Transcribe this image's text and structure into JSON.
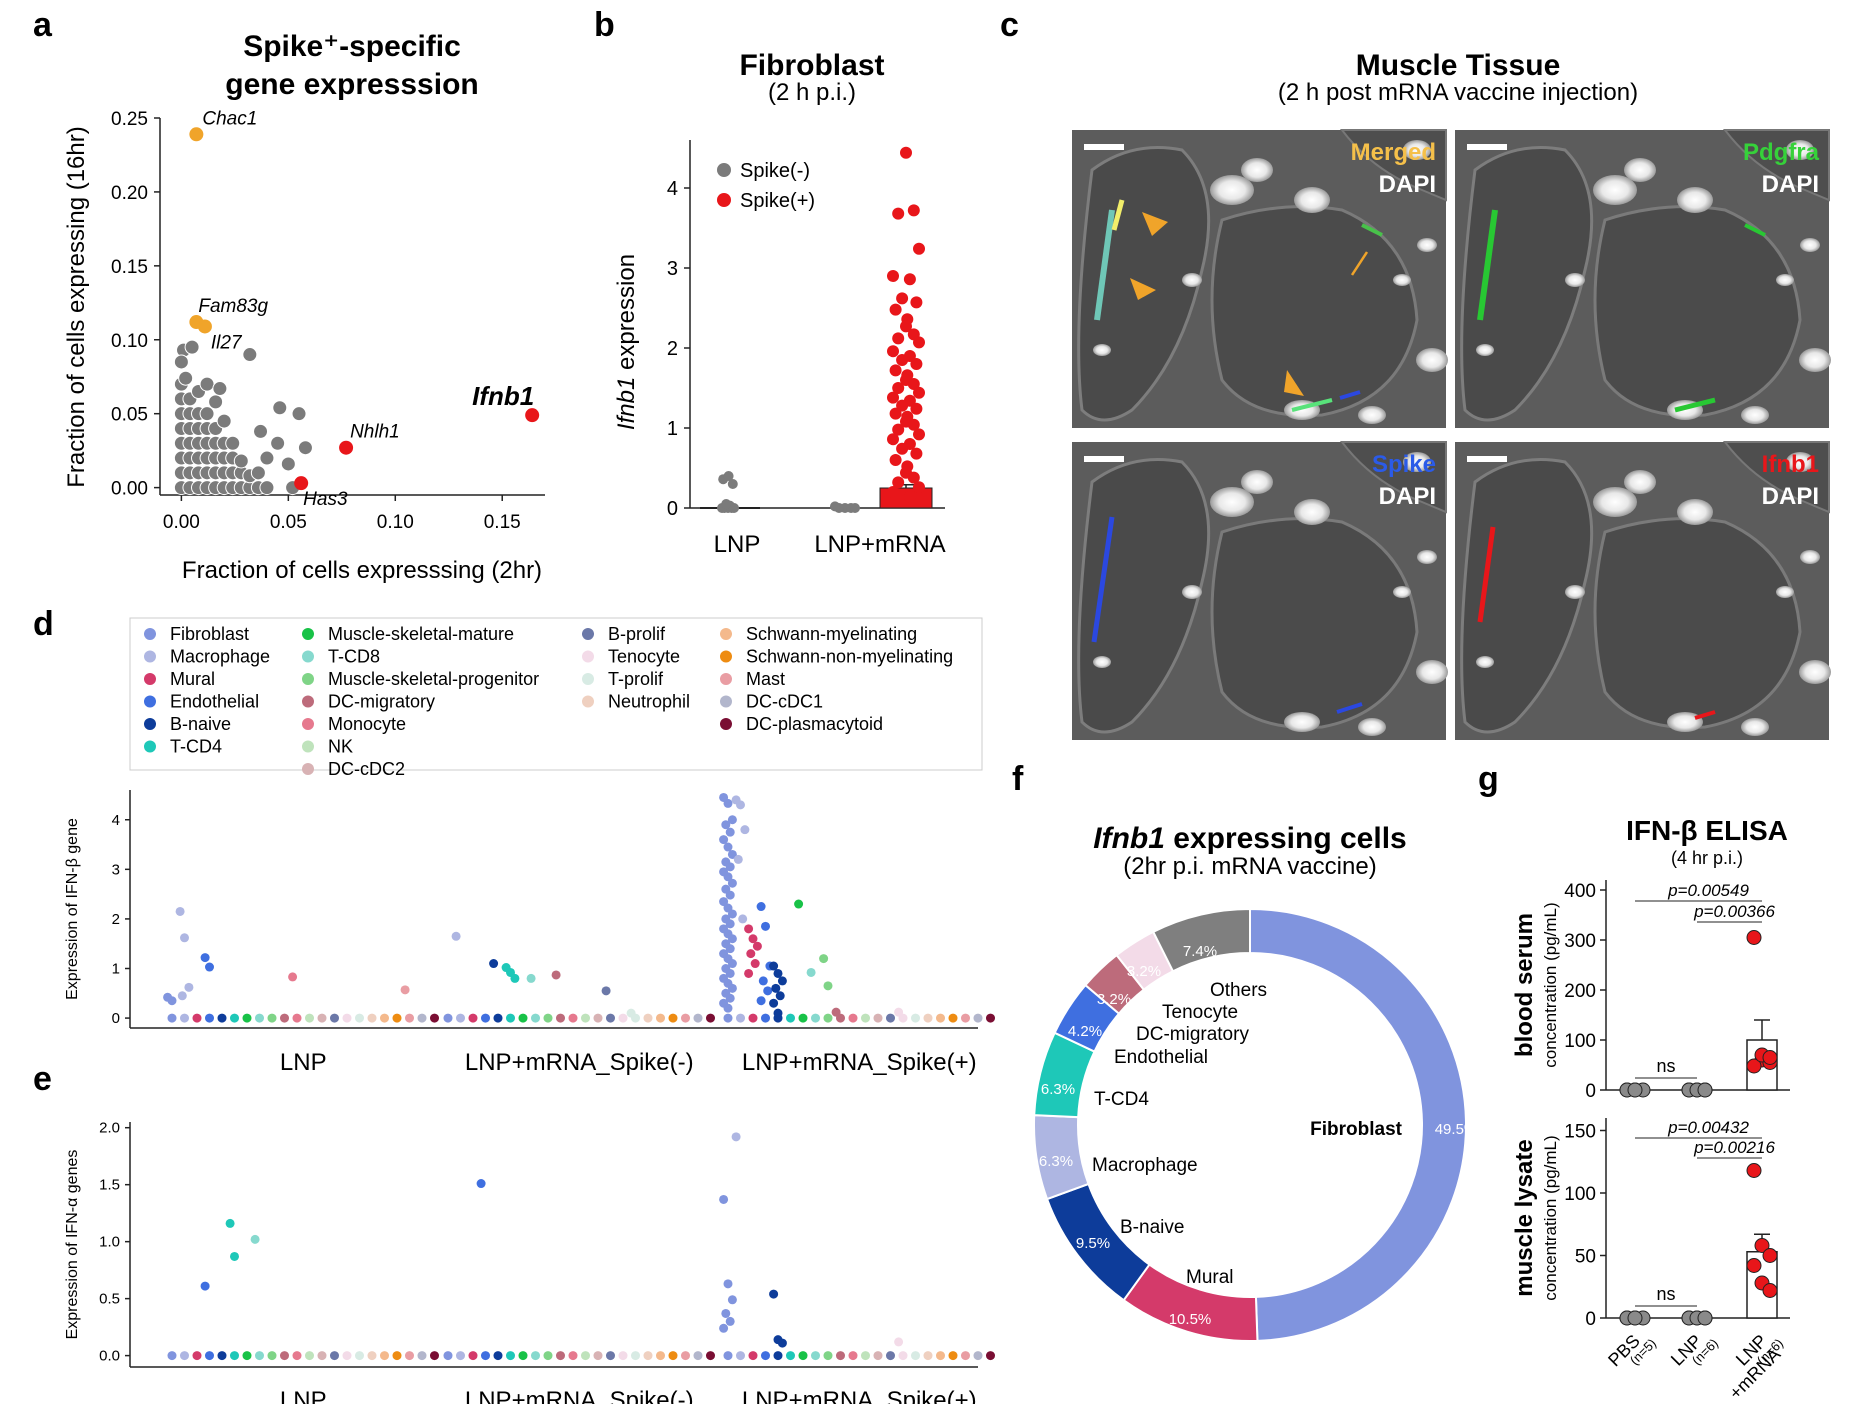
{
  "panels": {
    "a": "a",
    "b": "b",
    "c": "c",
    "d": "d",
    "e": "e",
    "f": "f",
    "g": "g"
  },
  "colors": {
    "gray": "#7b7b7b",
    "orange": "#f0a42a",
    "red": "#e8161a",
    "celltypes": {
      "Fibroblast": "#8094de",
      "Macrophage": "#aeb6e2",
      "Mural": "#d43a6a",
      "Endothelial": "#3f6fe0",
      "B-naive": "#0d3c9a",
      "T-CD4": "#1ec8b8",
      "Muscle-skeletal-mature": "#18c247",
      "T-CD8": "#86d9ce",
      "Muscle-skeletal-progenitor": "#7fd487",
      "DC-migratory": "#bd6b7b",
      "Monocyte": "#e6798e",
      "NK": "#bfe3bc",
      "DC-cDC2": "#d8b2b4",
      "B-prolif": "#6b78a8",
      "Tenocyte": "#f3dbe8",
      "T-prolif": "#d8ebe4",
      "Neutrophil": "#efd0c0",
      "Schwann-myelinating": "#f4b98c",
      "Schwann-non-myelinating": "#ee8c12",
      "Mast": "#e99da3",
      "DC-cDC1": "#b2b6cc",
      "DC-plasmacytoid": "#7a0e33",
      "Others": "#7f7f7f"
    }
  },
  "chart_data": [
    {
      "id": "a",
      "type": "scatter",
      "title": "Spike⁺-specific",
      "title2": "gene expresssion",
      "xlabel": "Fraction of cells expresssing (2hr)",
      "ylabel": "Fraction of cells expressing (16hr)",
      "xlim": [
        -0.01,
        0.17
      ],
      "ylim": [
        -0.005,
        0.25
      ],
      "xticks": [
        "0.00",
        "0.05",
        "0.10",
        "0.15"
      ],
      "xtick_values": [
        0,
        0.05,
        0.1,
        0.15
      ],
      "yticks": [
        "0.00",
        "0.05",
        "0.10",
        "0.15",
        "0.20",
        "0.25"
      ],
      "ytick_values": [
        0,
        0.05,
        0.1,
        0.15,
        0.2,
        0.25
      ],
      "grid": false,
      "highlighted": [
        {
          "name": "Chac1",
          "x": 0.007,
          "y": 0.239,
          "color": "orange",
          "italic": true,
          "bold": false
        },
        {
          "name": "Fam83g",
          "x": 0.007,
          "y": 0.112,
          "color": "orange",
          "italic": true,
          "bold": false
        },
        {
          "name": "Il27",
          "x": 0.011,
          "y": 0.109,
          "color": "orange",
          "italic": true,
          "bold": false
        },
        {
          "name": "Ifnb1",
          "x": 0.164,
          "y": 0.049,
          "color": "red",
          "italic": true,
          "bold": true
        },
        {
          "name": "Nhlh1",
          "x": 0.077,
          "y": 0.027,
          "color": "red",
          "italic": true,
          "bold": false
        },
        {
          "name": "Has3",
          "x": 0.056,
          "y": 0.003,
          "color": "red",
          "italic": true,
          "bold": false
        }
      ],
      "background_points_approx": [
        [
          0.0,
          0.0
        ],
        [
          0.0,
          0.01
        ],
        [
          0.0,
          0.02
        ],
        [
          0.0,
          0.03
        ],
        [
          0.0,
          0.04
        ],
        [
          0.0,
          0.05
        ],
        [
          0.0,
          0.06
        ],
        [
          0.0,
          0.07
        ],
        [
          0.002,
          0.074
        ],
        [
          0.001,
          0.093
        ],
        [
          0.005,
          0.095
        ],
        [
          0.0,
          0.085
        ],
        [
          0.004,
          0.0
        ],
        [
          0.004,
          0.01
        ],
        [
          0.004,
          0.02
        ],
        [
          0.004,
          0.03
        ],
        [
          0.004,
          0.04
        ],
        [
          0.004,
          0.05
        ],
        [
          0.004,
          0.06
        ],
        [
          0.008,
          0.0
        ],
        [
          0.008,
          0.01
        ],
        [
          0.008,
          0.02
        ],
        [
          0.008,
          0.03
        ],
        [
          0.008,
          0.04
        ],
        [
          0.008,
          0.05
        ],
        [
          0.008,
          0.065
        ],
        [
          0.012,
          0.0
        ],
        [
          0.012,
          0.01
        ],
        [
          0.012,
          0.02
        ],
        [
          0.012,
          0.03
        ],
        [
          0.012,
          0.04
        ],
        [
          0.012,
          0.05
        ],
        [
          0.012,
          0.07
        ],
        [
          0.016,
          0.0
        ],
        [
          0.016,
          0.01
        ],
        [
          0.016,
          0.02
        ],
        [
          0.016,
          0.03
        ],
        [
          0.016,
          0.04
        ],
        [
          0.016,
          0.058
        ],
        [
          0.02,
          0.0
        ],
        [
          0.02,
          0.01
        ],
        [
          0.02,
          0.02
        ],
        [
          0.02,
          0.03
        ],
        [
          0.02,
          0.045
        ],
        [
          0.024,
          0.0
        ],
        [
          0.024,
          0.01
        ],
        [
          0.024,
          0.02
        ],
        [
          0.024,
          0.03
        ],
        [
          0.028,
          0.0
        ],
        [
          0.028,
          0.01
        ],
        [
          0.028,
          0.018
        ],
        [
          0.032,
          0.0
        ],
        [
          0.032,
          0.008
        ],
        [
          0.032,
          0.09
        ],
        [
          0.036,
          0.0
        ],
        [
          0.036,
          0.01
        ],
        [
          0.04,
          0.0
        ],
        [
          0.04,
          0.02
        ],
        [
          0.037,
          0.038
        ],
        [
          0.046,
          0.054
        ],
        [
          0.05,
          0.016
        ],
        [
          0.052,
          0.0
        ],
        [
          0.055,
          0.05
        ],
        [
          0.058,
          0.027
        ],
        [
          0.018,
          0.067
        ],
        [
          0.045,
          0.03
        ]
      ]
    },
    {
      "id": "b",
      "type": "strip+bar",
      "title": "Fibroblast",
      "subtitle": "(2 h p.i.)",
      "ylabel": "Ifnb1 expression",
      "ylabel_italic": "Ifnb1",
      "ylabel_rest": " expression",
      "categories": [
        "LNP",
        "LNP+mRNA"
      ],
      "ylim": [
        0,
        4.6
      ],
      "yticks": [
        "0",
        "1",
        "2",
        "3",
        "4"
      ],
      "ytick_values": [
        0,
        1,
        2,
        3,
        4
      ],
      "legend": [
        {
          "name": "Spike(-)",
          "color": "gray"
        },
        {
          "name": "Spike(+)",
          "color": "red"
        }
      ],
      "spike_neg": {
        "LNP": [
          0.0,
          0.0,
          0.0,
          0.0,
          0.0,
          0.03,
          0.05,
          0.3,
          0.36,
          0.4
        ],
        "LNP+mRNA": [
          0.0,
          0.0,
          0.0,
          0.0,
          0.02
        ]
      },
      "spike_pos": {
        "LNP+mRNA": [
          4.44,
          3.72,
          3.68,
          3.24,
          2.9,
          2.86,
          2.62,
          2.57,
          2.48,
          2.36,
          2.27,
          2.17,
          2.12,
          2.07,
          1.96,
          1.9,
          1.85,
          1.8,
          1.72,
          1.66,
          1.6,
          1.55,
          1.5,
          1.44,
          1.38,
          1.34,
          1.28,
          1.24,
          1.18,
          1.14,
          1.08,
          1.04,
          0.98,
          0.92,
          0.86,
          0.8,
          0.74,
          0.68,
          0.6,
          0.52,
          0.44,
          0.38,
          0.32,
          0.26,
          0.2,
          0.14
        ]
      },
      "bar_mean": {
        "LNP+mRNA": 0.25
      },
      "bar_err": {
        "LNP+mRNA": 0.04
      }
    },
    {
      "id": "d",
      "type": "strip",
      "ylabel": "Expression of IFN-β gene",
      "groups": [
        "LNP",
        "LNP+mRNA_Spike(-)",
        "LNP+mRNA_Spike(+)"
      ],
      "ylim": [
        -0.2,
        4.6
      ],
      "yticks": [
        "0",
        "1",
        "2",
        "3",
        "4"
      ],
      "ytick_values": [
        0,
        1,
        2,
        3,
        4
      ],
      "legend": [
        "Fibroblast",
        "Macrophage",
        "Mural",
        "Endothelial",
        "B-naive",
        "T-CD4",
        "Muscle-skeletal-mature",
        "T-CD8",
        "Muscle-skeletal-progenitor",
        "DC-migratory",
        "Monocyte",
        "NK",
        "DC-cDC2",
        "B-prolif",
        "Tenocyte",
        "T-prolif",
        "Neutrophil",
        "Schwann-myelinating",
        "Schwann-non-myelinating",
        "Mast",
        "DC-cDC1",
        "DC-plasmacytoid"
      ],
      "points": [
        [
          "LNP",
          "Macrophage",
          [
            2.15,
            1.62,
            0.62,
            0.45
          ]
        ],
        [
          "LNP",
          "Fibroblast",
          [
            0.42,
            0.35
          ]
        ],
        [
          "LNP",
          "Endothelial",
          [
            1.22,
            1.03
          ]
        ],
        [
          "LNP",
          "Monocyte",
          [
            0.83
          ]
        ],
        [
          "LNP",
          "Mast",
          [
            0.57
          ]
        ],
        [
          "LNP+mRNA_Spike(-)",
          "Macrophage",
          [
            1.65
          ]
        ],
        [
          "LNP+mRNA_Spike(-)",
          "B-naive",
          [
            1.1
          ]
        ],
        [
          "LNP+mRNA_Spike(-)",
          "T-CD4",
          [
            1.02,
            0.92,
            0.8
          ]
        ],
        [
          "LNP+mRNA_Spike(-)",
          "T-CD8",
          [
            0.8
          ]
        ],
        [
          "LNP+mRNA_Spike(-)",
          "DC-migratory",
          [
            0.87
          ]
        ],
        [
          "LNP+mRNA_Spike(-)",
          "B-prolif",
          [
            0.55
          ]
        ],
        [
          "LNP+mRNA_Spike(-)",
          "T-prolif",
          [
            0.1
          ]
        ],
        [
          "LNP+mRNA_Spike(+)",
          "Fibroblast",
          [
            4.45,
            4.33,
            4.0,
            3.9,
            3.75,
            3.6,
            3.45,
            3.3,
            3.15,
            3.05,
            2.95,
            2.85,
            2.72,
            2.6,
            2.48,
            2.35,
            2.22,
            2.1,
            2.0,
            1.9,
            1.8,
            1.7,
            1.6,
            1.5,
            1.4,
            1.3,
            1.2,
            1.1,
            1.0,
            0.9,
            0.8,
            0.7,
            0.6,
            0.5,
            0.4,
            0.3,
            0.2
          ]
        ],
        [
          "LNP+mRNA_Spike(+)",
          "Macrophage",
          [
            4.4,
            4.3,
            3.8,
            3.2,
            2.0
          ]
        ],
        [
          "LNP+mRNA_Spike(+)",
          "Mural",
          [
            1.8,
            1.6,
            1.45,
            1.3,
            1.1,
            0.9
          ]
        ],
        [
          "LNP+mRNA_Spike(+)",
          "Endothelial",
          [
            2.25,
            1.85,
            1.05,
            0.75,
            0.55,
            0.35
          ]
        ],
        [
          "LNP+mRNA_Spike(+)",
          "B-naive",
          [
            1.05,
            0.9,
            0.75,
            0.6,
            0.45,
            0.3,
            0.1
          ]
        ],
        [
          "LNP+mRNA_Spike(+)",
          "Muscle-skeletal-mature",
          [
            2.3
          ]
        ],
        [
          "LNP+mRNA_Spike(+)",
          "Muscle-skeletal-progenitor",
          [
            1.2,
            0.65
          ]
        ],
        [
          "LNP+mRNA_Spike(+)",
          "T-CD8",
          [
            0.92
          ]
        ],
        [
          "LNP+mRNA_Spike(+)",
          "DC-migratory",
          [
            0.12
          ]
        ],
        [
          "LNP+mRNA_Spike(+)",
          "Tenocyte",
          [
            0.12
          ]
        ]
      ]
    },
    {
      "id": "e",
      "type": "strip",
      "ylabel": "Expression of IFN-α genes",
      "groups": [
        "LNP",
        "LNP+mRNA_Spike(-)",
        "LNP+mRNA_Spike(+)"
      ],
      "ylim": [
        -0.1,
        2.05
      ],
      "yticks": [
        "0.0",
        "0.5",
        "1.0",
        "1.5",
        "2.0"
      ],
      "ytick_values": [
        0,
        0.5,
        1,
        1.5,
        2
      ],
      "points": [
        [
          "LNP",
          "Endothelial",
          [
            0.61
          ]
        ],
        [
          "LNP",
          "T-CD4",
          [
            1.16,
            0.87
          ]
        ],
        [
          "LNP",
          "T-CD8",
          [
            1.02
          ]
        ],
        [
          "LNP+mRNA_Spike(-)",
          "Endothelial",
          [
            1.51
          ]
        ],
        [
          "LNP+mRNA_Spike(+)",
          "Macrophage",
          [
            1.92
          ]
        ],
        [
          "LNP+mRNA_Spike(+)",
          "Fibroblast",
          [
            1.37,
            0.63,
            0.49,
            0.37,
            0.3,
            0.24
          ]
        ],
        [
          "LNP+mRNA_Spike(+)",
          "B-naive",
          [
            0.54,
            0.14,
            0.11
          ]
        ],
        [
          "LNP+mRNA_Spike(+)",
          "Tenocyte",
          [
            0.12
          ]
        ]
      ]
    },
    {
      "id": "f",
      "type": "pie",
      "title_italic": "Ifnb1",
      "title_rest": " expressing cells",
      "subtitle": "(2hr p.i. mRNA vaccine)",
      "slices": [
        {
          "label": "Fibroblast",
          "value": 49.5,
          "pct": "49.5%",
          "bold": true
        },
        {
          "label": "Mural",
          "value": 10.5,
          "pct": "10.5%"
        },
        {
          "label": "B-naive",
          "value": 9.5,
          "pct": "9.5%"
        },
        {
          "label": "Macrophage",
          "value": 6.3,
          "pct": "6.3%"
        },
        {
          "label": "T-CD4",
          "value": 6.3,
          "pct": "6.3%"
        },
        {
          "label": "Endothelial",
          "value": 4.2,
          "pct": "4.2%"
        },
        {
          "label": "DC-migratory",
          "value": 3.2,
          "pct": "3.2%"
        },
        {
          "label": "Tenocyte",
          "value": 3.2,
          "pct": "3.2%"
        },
        {
          "label": "Others",
          "value": 7.4,
          "pct": "7.4%"
        }
      ]
    },
    {
      "id": "g",
      "type": "scatter+bar",
      "title": "IFN-β ELISA",
      "subtitle": "(4 hr p.i.)",
      "categories": [
        "PBS",
        "LNP",
        "LNP\n+mRNA"
      ],
      "ns": [
        "(n=5)",
        "(n=6)",
        "(n=6)"
      ],
      "top": {
        "ylabel_bold": "blood serum",
        "ylabel": "concentration (pg/mL)",
        "ylim": [
          0,
          420
        ],
        "yticks": [
          "0",
          "100",
          "200",
          "300",
          "400"
        ],
        "ytick_values": [
          0,
          100,
          200,
          300,
          400
        ],
        "values": {
          "PBS": [
            0,
            0,
            0,
            0,
            0
          ],
          "LNP": [
            0,
            0,
            0,
            0,
            0,
            0
          ],
          "LNP\n+mRNA": [
            305,
            60,
            55,
            48,
            70,
            65
          ]
        },
        "bar_mean": [
          0,
          0,
          100
        ],
        "bar_err": [
          0,
          0,
          40
        ],
        "comparisons": [
          {
            "label": "p=0.00549"
          },
          {
            "label": "p=0.00366"
          },
          {
            "label": "ns"
          }
        ]
      },
      "bottom": {
        "ylabel_bold": "muscle lysate",
        "ylabel": "concentration (pg/mL)",
        "ylim": [
          0,
          160
        ],
        "yticks": [
          "0",
          "50",
          "100",
          "150"
        ],
        "ytick_values": [
          0,
          50,
          100,
          150
        ],
        "values": {
          "PBS": [
            0,
            0,
            0,
            0,
            0
          ],
          "LNP": [
            0,
            0,
            0,
            0,
            0,
            0
          ],
          "LNP\n+mRNA": [
            118,
            58,
            50,
            42,
            28,
            22
          ]
        },
        "bar_mean": [
          0,
          0,
          53
        ],
        "bar_err": [
          0,
          0,
          14
        ],
        "comparisons": [
          {
            "label": "p=0.00432"
          },
          {
            "label": "p=0.00216"
          },
          {
            "label": "ns"
          }
        ]
      }
    }
  ],
  "panel_c": {
    "title": "Muscle Tissue",
    "subtitle": "(2 h post mRNA vaccine injection)",
    "tiles": [
      {
        "label": "Merged",
        "label_color": "#f5c04a",
        "stain": "DAPI"
      },
      {
        "label": "Pdgfra",
        "label_color": "#36d13a",
        "stain": "DAPI"
      },
      {
        "label": "Spike",
        "label_color": "#2b5be8",
        "stain": "DAPI"
      },
      {
        "label": "Ifnb1",
        "label_color": "#e8161a",
        "stain": "DAPI"
      }
    ]
  }
}
